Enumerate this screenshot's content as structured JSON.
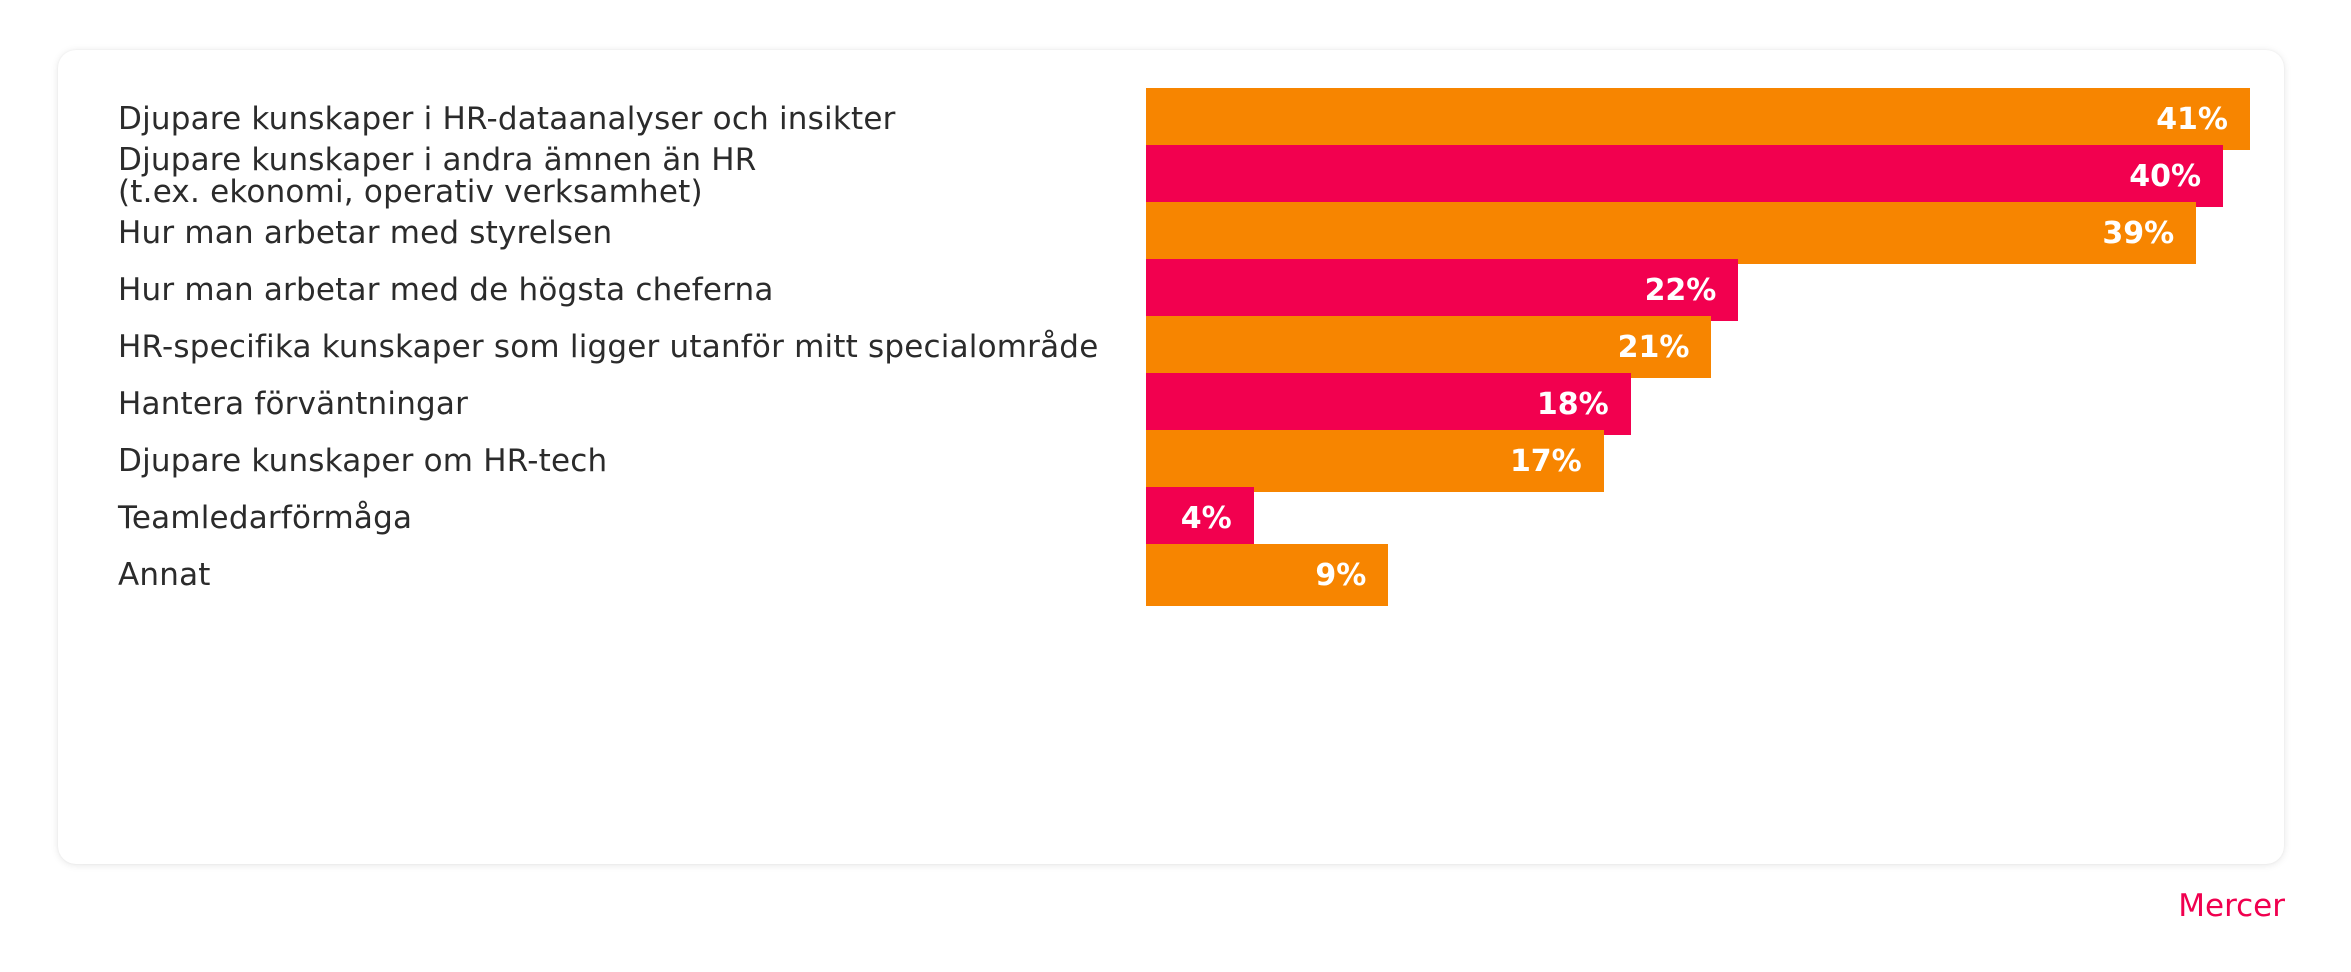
{
  "chart_data": {
    "type": "bar",
    "orientation": "horizontal",
    "categories": [
      "Djupare kunskaper i HR-dataanalyser och insikter",
      "Djupare kunskaper i andra ämnen än HR\n(t.ex. ekonomi, operativ verksamhet)",
      "Hur man arbetar med styrelsen",
      "Hur man arbetar med de högsta cheferna",
      "HR-specifika kunskaper som ligger utanför mitt specialområde",
      "Hantera förväntningar",
      "Djupare kunskaper om HR-tech",
      "Teamledarförmåga",
      "Annat"
    ],
    "values": [
      41,
      40,
      39,
      22,
      21,
      18,
      17,
      4,
      9
    ],
    "value_labels": [
      "41%",
      "40%",
      "39%",
      "22%",
      "21%",
      "18%",
      "17%",
      "4%",
      "9%"
    ],
    "unit": "%",
    "xlim": [
      0,
      41
    ],
    "colors": [
      "#f78500",
      "#f2004f",
      "#f78500",
      "#f2004f",
      "#f78500",
      "#f2004f",
      "#f78500",
      "#f2004f",
      "#f78500"
    ],
    "grid": false,
    "legend": "none"
  },
  "brand": {
    "logo_text": "Mercer",
    "color": "#f0004f"
  }
}
